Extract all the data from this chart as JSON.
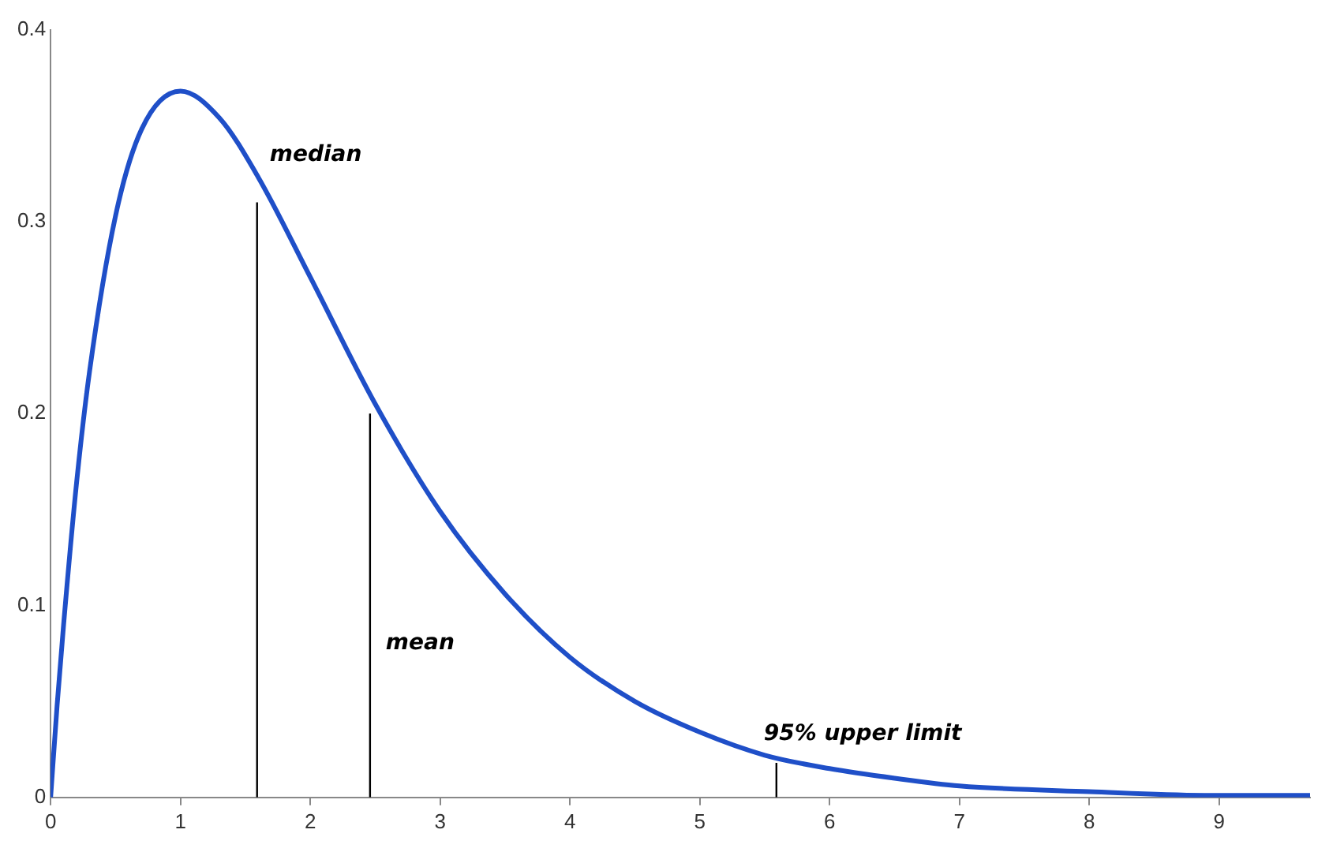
{
  "chart_data": {
    "type": "line",
    "xlim": [
      0,
      9.7
    ],
    "xticks": [
      0,
      1,
      2,
      3,
      4,
      5,
      6,
      7,
      8,
      9
    ],
    "ylim": [
      0,
      0.4
    ],
    "yticks": [
      0,
      0.1,
      0.2,
      0.3,
      0.4
    ],
    "grid": false,
    "legend": false,
    "marker": "none",
    "series": [
      {
        "color": "#1f4fc8",
        "x": [
          0,
          0.05,
          0.1,
          0.2,
          0.3,
          0.5,
          0.7,
          1,
          1.3,
          1.6,
          2,
          2.5,
          3,
          3.5,
          4,
          4.5,
          5,
          5.5,
          6,
          6.5,
          7,
          8,
          9,
          9.7
        ],
        "values": [
          0,
          0.048,
          0.09,
          0.164,
          0.222,
          0.303,
          0.348,
          0.368,
          0.354,
          0.323,
          0.271,
          0.205,
          0.149,
          0.106,
          0.073,
          0.05,
          0.034,
          0.022,
          0.015,
          0.01,
          0.006,
          0.003,
          0.001,
          0.001
        ]
      },
      {
        "color": "#000000",
        "x": [
          1.59,
          1.59
        ],
        "values": [
          0,
          0.31
        ]
      },
      {
        "color": "#000000",
        "x": [
          2.46,
          2.46
        ],
        "values": [
          0,
          0.2
        ]
      },
      {
        "color": "#000000",
        "x": [
          5.59,
          5.59
        ],
        "values": [
          0,
          0.018
        ]
      }
    ],
    "annotations": [
      {
        "text": "median",
        "x": 1.59,
        "y": 0.31
      },
      {
        "text": "mean",
        "x": 2.46,
        "y": 0.08
      },
      {
        "text": "95% upper limit",
        "x": 5.59,
        "y": 0.018
      }
    ]
  }
}
